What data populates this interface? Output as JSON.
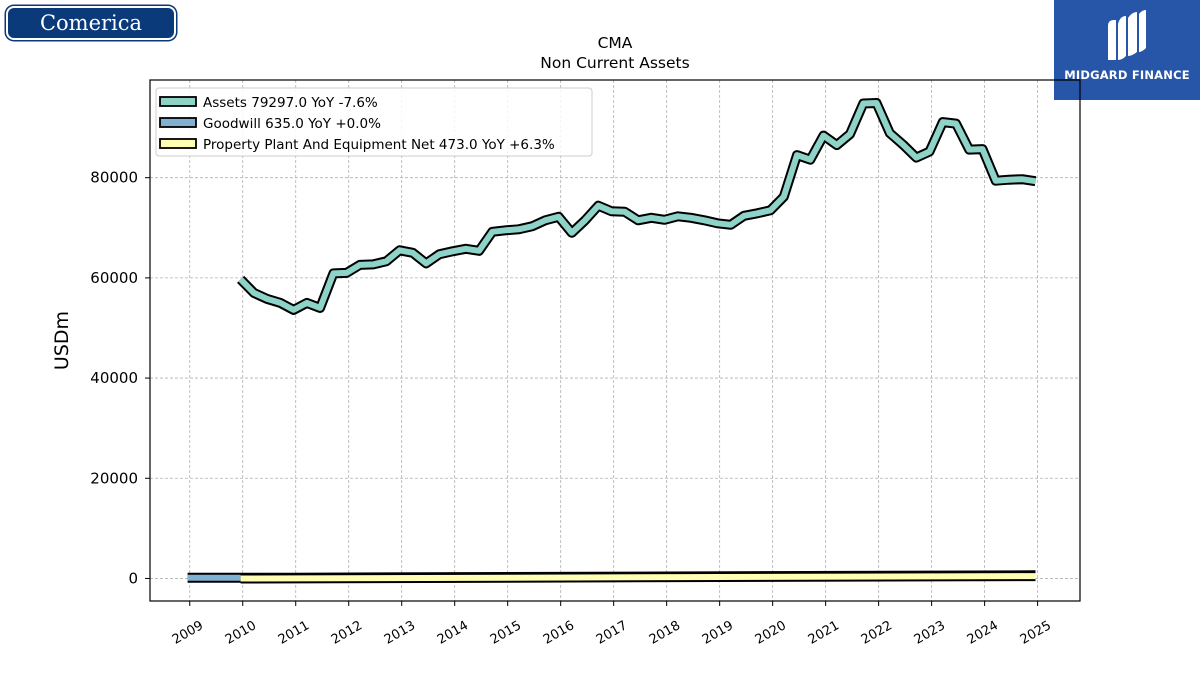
{
  "brand": {
    "left_logo_text": "Comerica",
    "right_logo_text": "MIDGARD FINANCE"
  },
  "chart_data": {
    "type": "line",
    "title": "CMA",
    "subtitle": "Non Current  Assets",
    "ylabel": "USDm",
    "xlabel": "",
    "ylim": [
      -4500,
      99500
    ],
    "xlim": [
      2008.25,
      2025.8
    ],
    "yticks": [
      0,
      20000,
      40000,
      60000,
      80000
    ],
    "ytick_labels": [
      "0",
      "20000",
      "40000",
      "60000",
      "80000"
    ],
    "xticks": [
      2009,
      2010,
      2011,
      2012,
      2013,
      2014,
      2015,
      2016,
      2017,
      2018,
      2019,
      2020,
      2021,
      2022,
      2023,
      2024,
      2025
    ],
    "xtick_labels": [
      "2009",
      "2010",
      "2011",
      "2012",
      "2013",
      "2014",
      "2015",
      "2016",
      "2017",
      "2018",
      "2019",
      "2020",
      "2021",
      "2022",
      "2023",
      "2024",
      "2025"
    ],
    "grid": true,
    "legend_position": "top-left",
    "series": [
      {
        "name": "Assets",
        "legend": "Assets  79297.0 YoY -7.6%",
        "color": "#8dd3c7",
        "x": [
          2009.96,
          2010.21,
          2010.46,
          2010.71,
          2010.96,
          2011.21,
          2011.46,
          2011.71,
          2011.96,
          2012.21,
          2012.46,
          2012.71,
          2012.96,
          2013.21,
          2013.46,
          2013.71,
          2013.96,
          2014.21,
          2014.46,
          2014.71,
          2014.96,
          2015.21,
          2015.46,
          2015.71,
          2015.96,
          2016.21,
          2016.46,
          2016.71,
          2016.96,
          2017.21,
          2017.46,
          2017.71,
          2017.96,
          2018.21,
          2018.46,
          2018.71,
          2018.96,
          2019.21,
          2019.46,
          2019.71,
          2019.96,
          2020.21,
          2020.46,
          2020.71,
          2020.96,
          2021.21,
          2021.46,
          2021.71,
          2021.96,
          2022.21,
          2022.46,
          2022.71,
          2022.96,
          2023.21,
          2023.46,
          2023.71,
          2023.96,
          2024.21,
          2024.46,
          2024.71,
          2024.96
        ],
        "y": [
          59700,
          57000,
          55800,
          55000,
          53600,
          55000,
          54000,
          60900,
          61000,
          62600,
          62700,
          63300,
          65500,
          65000,
          62900,
          64700,
          65300,
          65800,
          65400,
          69200,
          69500,
          69700,
          70300,
          71500,
          72200,
          69000,
          71500,
          74400,
          73300,
          73200,
          71500,
          72000,
          71600,
          72300,
          72000,
          71500,
          70900,
          70600,
          72400,
          72900,
          73500,
          76200,
          84500,
          83600,
          88400,
          86500,
          88700,
          94800,
          94900,
          88900,
          86600,
          84000,
          85200,
          91100,
          90800,
          85600,
          85700,
          79400,
          79600,
          79700,
          79300
        ]
      },
      {
        "name": "Goodwill",
        "legend": "Goodwill  635.0 YoY +0.0%",
        "color": "#80b1d3",
        "x": [
          2008.96,
          2010.96,
          2024.96
        ],
        "y": [
          150,
          150,
          635
        ]
      },
      {
        "name": "Property Plant And Equipment Net",
        "legend": "Property Plant And Equipment Net  473.0 YoY +6.3%",
        "color": "#ffffb3",
        "x": [
          2009.96,
          2024.96
        ],
        "y": [
          0,
          473
        ]
      }
    ]
  }
}
